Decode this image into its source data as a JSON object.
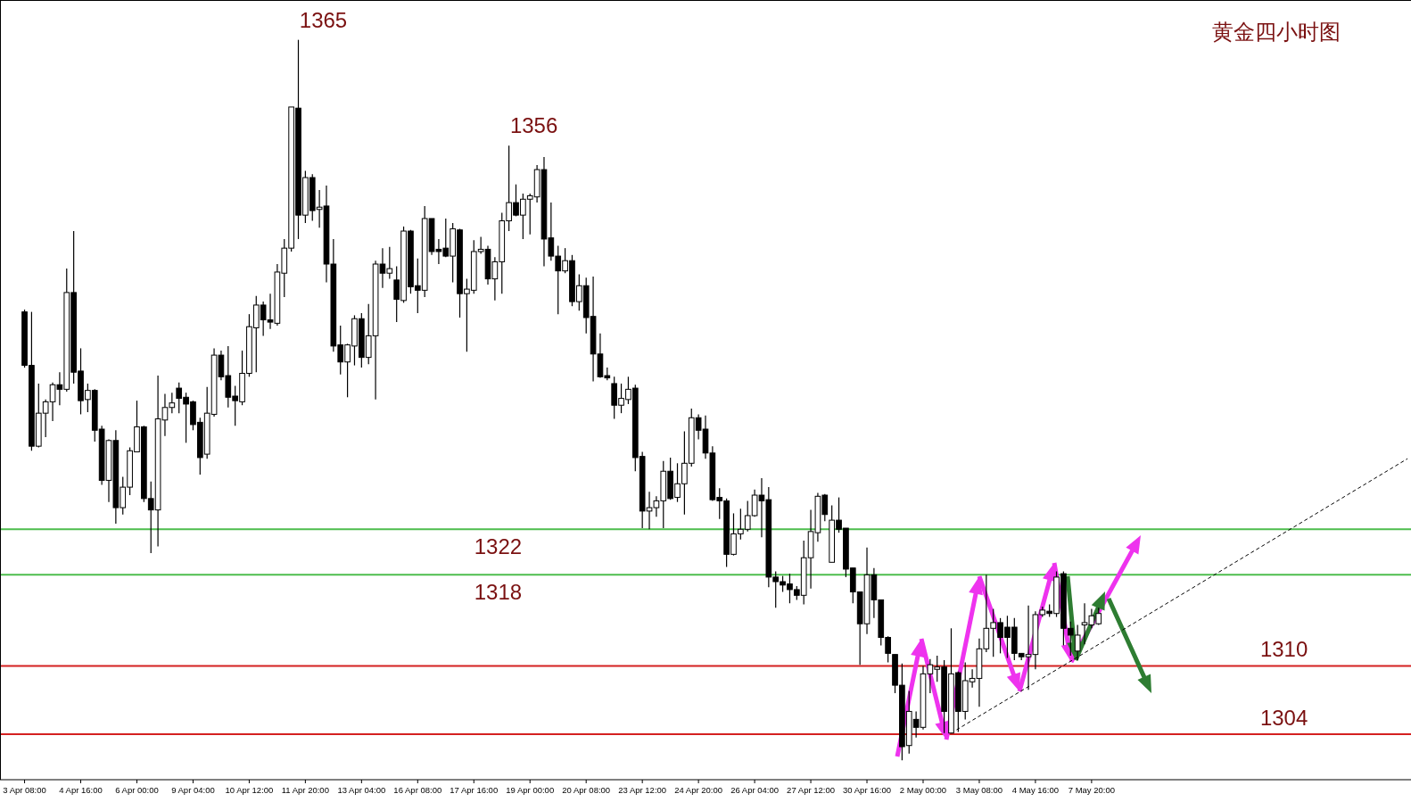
{
  "chart_data": {
    "type": "candlestick",
    "title": "黄金四小时图",
    "categories": [
      "3 Apr 08:00",
      null,
      null,
      null,
      null,
      null,
      null,
      null,
      "4 Apr 16:00",
      null,
      null,
      null,
      null,
      null,
      null,
      null,
      "6 Apr 00:00",
      null,
      null,
      null,
      null,
      null,
      null,
      null,
      "9 Apr 04:00",
      null,
      null,
      null,
      null,
      null,
      null,
      null,
      "10 Apr 12:00",
      null,
      null,
      null,
      null,
      null,
      null,
      null,
      "11 Apr 20:00",
      null,
      null,
      null,
      null,
      null,
      null,
      null,
      "13 Apr 04:00",
      null,
      null,
      null,
      null,
      null,
      null,
      null,
      "16 Apr 08:00",
      null,
      null,
      null,
      null,
      null,
      null,
      null,
      "17 Apr 16:00",
      null,
      null,
      null,
      null,
      null,
      null,
      null,
      "19 Apr 00:00",
      null,
      null,
      null,
      null,
      null,
      null,
      null,
      "20 Apr 08:00",
      null,
      null,
      null,
      null,
      null,
      null,
      null,
      "23 Apr 12:00",
      null,
      null,
      null,
      null,
      null,
      null,
      null,
      "24 Apr 20:00",
      null,
      null,
      null,
      null,
      null,
      null,
      null,
      "26 Apr 04:00",
      null,
      null,
      null,
      null,
      null,
      null,
      null,
      "27 Apr 12:00",
      null,
      null,
      null,
      null,
      null,
      null,
      null,
      "30 Apr 16:00",
      null,
      null,
      null,
      null,
      null,
      null,
      null,
      "2 May 00:00",
      null,
      null,
      null,
      null,
      null,
      null,
      null,
      "3 May 08:00",
      null,
      null,
      null,
      null,
      null,
      null,
      null,
      "4 May 16:00",
      null,
      null,
      null,
      null,
      null,
      null,
      null,
      "7 May 20:00",
      null,
      null,
      null,
      null,
      null,
      null,
      null,
      null,
      null,
      null,
      null,
      null,
      null,
      null,
      null,
      null,
      null,
      null,
      null,
      null,
      null,
      null,
      null,
      null,
      null,
      null,
      null,
      null,
      null,
      null,
      null,
      null,
      null,
      null,
      null,
      null,
      null,
      null,
      null,
      null,
      null,
      null,
      null,
      null,
      null
    ],
    "ohlc": [
      [
        1341.1,
        1341.3,
        1336.2,
        1336.4
      ],
      [
        1336.4,
        1341.1,
        1328.9,
        1329.3
      ],
      [
        1329.3,
        1334.8,
        1329.2,
        1332.2
      ],
      [
        1332.2,
        1333.4,
        1330.1,
        1333.2
      ],
      [
        1333.2,
        1334.9,
        1331.5,
        1334.7
      ],
      [
        1334.7,
        1335.8,
        1332.9,
        1334.3
      ],
      [
        1334.3,
        1344.9,
        1334.1,
        1342.8
      ],
      [
        1342.8,
        1348.2,
        1334.8,
        1335.8
      ],
      [
        1335.9,
        1337.9,
        1332.1,
        1333.3
      ],
      [
        1333.4,
        1334.8,
        1332.3,
        1334.2
      ],
      [
        1334.2,
        1334.3,
        1329.7,
        1330.7
      ],
      [
        1330.8,
        1331.1,
        1325.9,
        1326.3
      ],
      [
        1326.3,
        1329.9,
        1324.4,
        1329.8
      ],
      [
        1329.8,
        1330.7,
        1322.5,
        1323.9
      ],
      [
        1323.9,
        1326.6,
        1323.3,
        1325.7
      ],
      [
        1325.7,
        1329.2,
        1325.0,
        1328.9
      ],
      [
        1328.8,
        1333.3,
        1328.8,
        1331.0
      ],
      [
        1331.0,
        1331.1,
        1324.4,
        1324.7
      ],
      [
        1324.7,
        1326.2,
        1319.9,
        1323.7
      ],
      [
        1323.7,
        1335.5,
        1320.5,
        1331.7
      ],
      [
        1331.6,
        1333.9,
        1330.2,
        1332.7
      ],
      [
        1332.7,
        1334.0,
        1332.2,
        1333.1
      ],
      [
        1334.4,
        1334.9,
        1332.2,
        1333.5
      ],
      [
        1333.6,
        1334.0,
        1329.6,
        1333.0
      ],
      [
        1333.2,
        1333.3,
        1330.7,
        1331.2
      ],
      [
        1331.4,
        1331.8,
        1326.8,
        1328.3
      ],
      [
        1328.6,
        1334.5,
        1328.2,
        1332.2
      ],
      [
        1332.1,
        1337.9,
        1331.9,
        1337.3
      ],
      [
        1337.3,
        1337.7,
        1335.1,
        1335.4
      ],
      [
        1335.5,
        1338.1,
        1332.7,
        1333.6
      ],
      [
        1333.7,
        1334.6,
        1331.1,
        1333.3
      ],
      [
        1333.2,
        1337.7,
        1332.9,
        1335.7
      ],
      [
        1335.7,
        1340.9,
        1335.4,
        1339.8
      ],
      [
        1339.7,
        1342.5,
        1335.8,
        1341.7
      ],
      [
        1341.7,
        1342.0,
        1339.0,
        1340.4
      ],
      [
        1340.4,
        1342.7,
        1339.6,
        1340.2
      ],
      [
        1340.1,
        1345.3,
        1339.9,
        1344.6
      ],
      [
        1344.5,
        1347.5,
        1342.4,
        1346.7
      ],
      [
        1346.7,
        1359.1,
        1346.4,
        1359.1
      ],
      [
        1359.0,
        1365,
        1347.5,
        1349.6
      ],
      [
        1349.6,
        1353.5,
        1348.9,
        1352.9
      ],
      [
        1352.9,
        1353.2,
        1349.1,
        1350.0
      ],
      [
        1350.1,
        1351.8,
        1348.5,
        1350.3
      ],
      [
        1350.4,
        1352.2,
        1343.7,
        1345.3
      ],
      [
        1345.3,
        1347.5,
        1337.6,
        1338.1
      ],
      [
        1338.2,
        1339.9,
        1335.6,
        1336.7
      ],
      [
        1336.7,
        1338.3,
        1333.6,
        1338.2
      ],
      [
        1338.1,
        1340.8,
        1336.4,
        1340.5
      ],
      [
        1340.5,
        1341.0,
        1336.2,
        1337.1
      ],
      [
        1337.1,
        1341.8,
        1336.5,
        1339.0
      ],
      [
        1339.0,
        1345.6,
        1333.4,
        1345.3
      ],
      [
        1345.3,
        1346.7,
        1343.2,
        1344.5
      ],
      [
        1344.5,
        1346.8,
        1344.0,
        1344.9
      ],
      [
        1343.9,
        1345.1,
        1340.2,
        1342.2
      ],
      [
        1342.1,
        1348.6,
        1341.9,
        1348.2
      ],
      [
        1348.2,
        1348.3,
        1342.7,
        1343.3
      ],
      [
        1343.4,
        1345.8,
        1341.0,
        1343.0
      ],
      [
        1343.0,
        1350.4,
        1342.4,
        1349.3
      ],
      [
        1349.3,
        1349.3,
        1346.1,
        1346.4
      ],
      [
        1346.6,
        1347.5,
        1345.3,
        1346.4
      ],
      [
        1346.7,
        1349.3,
        1345.9,
        1346.0
      ],
      [
        1346.0,
        1348.9,
        1343.7,
        1348.4
      ],
      [
        1348.3,
        1348.4,
        1340.6,
        1342.7
      ],
      [
        1342.7,
        1344.0,
        1337.6,
        1343.1
      ],
      [
        1343.0,
        1347.4,
        1342.7,
        1346.4
      ],
      [
        1346.4,
        1347.7,
        1346.2,
        1346.6
      ],
      [
        1346.6,
        1346.9,
        1343.5,
        1344.0
      ],
      [
        1344.0,
        1345.9,
        1342.1,
        1345.5
      ],
      [
        1345.5,
        1349.8,
        1342.7,
        1349.1
      ],
      [
        1349.1,
        1355.7,
        1348.2,
        1350.7
      ],
      [
        1350.7,
        1352.3,
        1349.5,
        1349.6
      ],
      [
        1349.6,
        1351.5,
        1347.5,
        1351.0
      ],
      [
        1351.0,
        1351.5,
        1347.9,
        1351.3
      ],
      [
        1351.2,
        1354.0,
        1350.7,
        1353.6
      ],
      [
        1353.6,
        1354.7,
        1345.1,
        1347.5
      ],
      [
        1347.6,
        1350.7,
        1345.6,
        1346.0
      ],
      [
        1346.0,
        1346.9,
        1340.9,
        1344.7
      ],
      [
        1344.7,
        1346.7,
        1344.5,
        1345.6
      ],
      [
        1345.6,
        1346.1,
        1341.6,
        1342.0
      ],
      [
        1342.0,
        1344.4,
        1341.2,
        1343.4
      ],
      [
        1343.4,
        1344.1,
        1339.2,
        1340.6
      ],
      [
        1340.7,
        1344.2,
        1335.0,
        1337.4
      ],
      [
        1337.4,
        1339.2,
        1335.3,
        1335.4
      ],
      [
        1335.5,
        1336.2,
        1335.1,
        1335.3
      ],
      [
        1334.8,
        1335.4,
        1331.7,
        1332.9
      ],
      [
        1332.9,
        1334.8,
        1332.2,
        1333.5
      ],
      [
        1333.4,
        1335.4,
        1333.0,
        1334.3
      ],
      [
        1334.4,
        1334.7,
        1327.1,
        1328.3
      ],
      [
        1328.4,
        1328.8,
        1322.1,
        1323.6
      ],
      [
        1323.6,
        1325.3,
        1322.0,
        1323.9
      ],
      [
        1323.9,
        1324.9,
        1323.1,
        1324.5
      ],
      [
        1324.5,
        1328.0,
        1322.1,
        1327.1
      ],
      [
        1327.1,
        1328.3,
        1324.6,
        1324.7
      ],
      [
        1324.8,
        1327.8,
        1324.4,
        1326.0
      ],
      [
        1326.0,
        1330.6,
        1323.3,
        1327.8
      ],
      [
        1327.8,
        1332.6,
        1327.5,
        1331.8
      ],
      [
        1331.8,
        1332.1,
        1329.9,
        1330.7
      ],
      [
        1330.8,
        1332.0,
        1328.2,
        1328.7
      ],
      [
        1328.7,
        1329.3,
        1324.5,
        1324.6
      ],
      [
        1324.8,
        1325.6,
        1322.9,
        1324.5
      ],
      [
        1324.5,
        1324.7,
        1318.7,
        1319.8
      ],
      [
        1319.8,
        1323.4,
        1319.7,
        1321.6
      ],
      [
        1321.6,
        1323.8,
        1321.1,
        1322.0
      ],
      [
        1322.0,
        1324.5,
        1321.8,
        1323.2
      ],
      [
        1323.2,
        1325.5,
        1323.1,
        1325.0
      ],
      [
        1325.0,
        1326.5,
        1321.3,
        1324.5
      ],
      [
        1324.6,
        1325.7,
        1316.9,
        1317.8
      ],
      [
        1317.8,
        1318.3,
        1315.1,
        1317.4
      ],
      [
        1317.4,
        1317.9,
        1316.5,
        1317.1
      ],
      [
        1317.2,
        1318.1,
        1315.5,
        1316.7
      ],
      [
        1316.7,
        1317.0,
        1315.8,
        1316.2
      ],
      [
        1316.2,
        1321.0,
        1315.4,
        1319.5
      ],
      [
        1319.5,
        1323.7,
        1316.8,
        1321.8
      ],
      [
        1321.7,
        1325.2,
        1320.9,
        1324.9
      ],
      [
        1325.0,
        1325.1,
        1322.7,
        1323.3
      ],
      [
        1319.1,
        1324.1,
        1319.1,
        1322.8
      ],
      [
        1322.8,
        1324.8,
        1321.7,
        1322.0
      ],
      [
        1322.1,
        1322.1,
        1317.8,
        1318.5
      ],
      [
        1318.6,
        1318.6,
        1315.5,
        1316.5
      ],
      [
        1316.5,
        1316.5,
        1310.1,
        1313.7
      ],
      [
        1313.7,
        1320.4,
        1312.8,
        1318.0
      ],
      [
        1318.0,
        1318.6,
        1314.2,
        1315.8
      ],
      [
        1315.8,
        1315.8,
        1311.8,
        1312.5
      ],
      [
        1312.5,
        1312.6,
        1310.3,
        1311.1
      ],
      [
        1311.0,
        1311.0,
        1307.6,
        1308.3
      ],
      [
        1308.3,
        1310.2,
        1301.7,
        1302.9
      ],
      [
        1303.0,
        1307.8,
        1302.3,
        1306.0
      ],
      [
        1305.3,
        1306.0,
        1303.7,
        1304.6
      ],
      [
        1304.6,
        1310.0,
        1304.4,
        1309.3
      ],
      [
        1309.3,
        1310.6,
        1307.6,
        1310.1
      ],
      [
        1309.7,
        1310.9,
        1308.6,
        1309.9
      ],
      [
        1309.9,
        1310.5,
        1304.1,
        1306.0
      ],
      [
        1304.1,
        1313.3,
        1304.1,
        1309.3
      ],
      [
        1309.4,
        1309.5,
        1304.2,
        1306.0
      ],
      [
        1306.0,
        1310.3,
        1305.3,
        1308.7
      ],
      [
        1308.6,
        1309.7,
        1308.1,
        1308.9
      ],
      [
        1308.9,
        1312.4,
        1306.4,
        1311.5
      ],
      [
        1311.5,
        1318.0,
        1311.2,
        1313.3
      ],
      [
        1313.3,
        1315.0,
        1310.8,
        1313.8
      ],
      [
        1313.8,
        1314.2,
        1311.1,
        1312.5
      ],
      [
        1313.4,
        1314.4,
        1310.7,
        1312.5
      ],
      [
        1313.4,
        1314.2,
        1310.5,
        1311.1
      ],
      [
        1311.1,
        1311.1,
        1310.5,
        1310.8
      ],
      [
        1310.8,
        1315.3,
        1307.9,
        1311.0
      ],
      [
        1311.0,
        1314.8,
        1309.7,
        1314.5
      ],
      [
        1314.5,
        1315.2,
        1314.3,
        1314.9
      ],
      [
        1314.8,
        1315.4,
        1314.3,
        1314.6
      ],
      [
        1314.6,
        1318.3,
        1314.3,
        1317.8
      ],
      [
        1318.1,
        1318.3,
        1311.8,
        1313.3
      ],
      [
        1313.3,
        1313.9,
        1310.9,
        1312.7
      ],
      [
        1311.3,
        1313.6,
        1310.5,
        1312.7
      ],
      [
        1313.6,
        1315.5,
        1311.9,
        1313.8
      ],
      [
        1313.6,
        1315.0,
        1313.3,
        1314.4
      ],
      [
        1313.7,
        1315.1,
        1313.6,
        1314.6
      ],
      null,
      null,
      null,
      null,
      null,
      null,
      null,
      null,
      null,
      null,
      null,
      null,
      null,
      null,
      null,
      null,
      null,
      null,
      null,
      null,
      null,
      null,
      null,
      null,
      null,
      null,
      null,
      null,
      null,
      null,
      null,
      null,
      null,
      null,
      null,
      null,
      null,
      null,
      null,
      null,
      null,
      null,
      null,
      null
    ],
    "series": [
      {
        "type": "line",
        "values": [
          null,
          null,
          null,
          null,
          null,
          null,
          null,
          null,
          null,
          null,
          null,
          null,
          null,
          null,
          null,
          null,
          null,
          null,
          null,
          null,
          null,
          null,
          null,
          null,
          null,
          null,
          null,
          null,
          null,
          null,
          null,
          null,
          null,
          null,
          null,
          null,
          null,
          null,
          null,
          null,
          null,
          null,
          null,
          null,
          null,
          null,
          null,
          null,
          null,
          null,
          null,
          null,
          null,
          null,
          null,
          null,
          null,
          null,
          null,
          null,
          null,
          null,
          null,
          null,
          null,
          null,
          null,
          null,
          null,
          null,
          null,
          null,
          null,
          null,
          null,
          null,
          null,
          null,
          null,
          null,
          null,
          null,
          null,
          null,
          null,
          null,
          null,
          null,
          null,
          null,
          null,
          null,
          null,
          null,
          null,
          null,
          null,
          null,
          null,
          null,
          null,
          null,
          null,
          null,
          null,
          null,
          null,
          null,
          null,
          null,
          null,
          null,
          null,
          null,
          null,
          null,
          null,
          null,
          null,
          null,
          null,
          null,
          null,
          null,
          null,
          null,
          null,
          null,
          null,
          null,
          null,
          null,
          1304.1,
          null,
          null,
          null,
          null,
          null,
          null,
          null,
          null,
          null,
          null,
          null,
          null,
          null,
          null,
          null,
          null,
          null,
          null,
          null,
          null,
          null,
          null,
          null,
          null,
          null,
          null,
          null,
          null,
          null,
          null,
          null,
          null,
          null,
          null,
          null,
          null,
          null,
          null,
          null,
          null,
          null,
          null,
          null,
          null,
          null,
          null,
          null,
          null,
          null,
          null,
          null,
          null,
          null,
          null,
          null,
          null,
          null,
          null,
          null,
          null,
          null,
          null,
          null,
          null,
          1328.2
        ],
        "color": "#000000",
        "line_style": "dashed"
      }
    ],
    "ylim": [
      1300,
      1368.5
    ],
    "tick_labels": "x",
    "ref_lines": [
      {
        "axis": "y",
        "value": 1322,
        "label": "1322",
        "color": "#4dbd4d"
      },
      {
        "axis": "y",
        "value": 1318,
        "label": "1318",
        "color": "#4dbd4d"
      },
      {
        "axis": "y",
        "value": 1310,
        "label": "1310",
        "color": "#d42020"
      },
      {
        "axis": "y",
        "value": 1304,
        "label": "1304",
        "color": "#d42020"
      }
    ],
    "annotations": [
      "1365",
      "1356"
    ]
  }
}
